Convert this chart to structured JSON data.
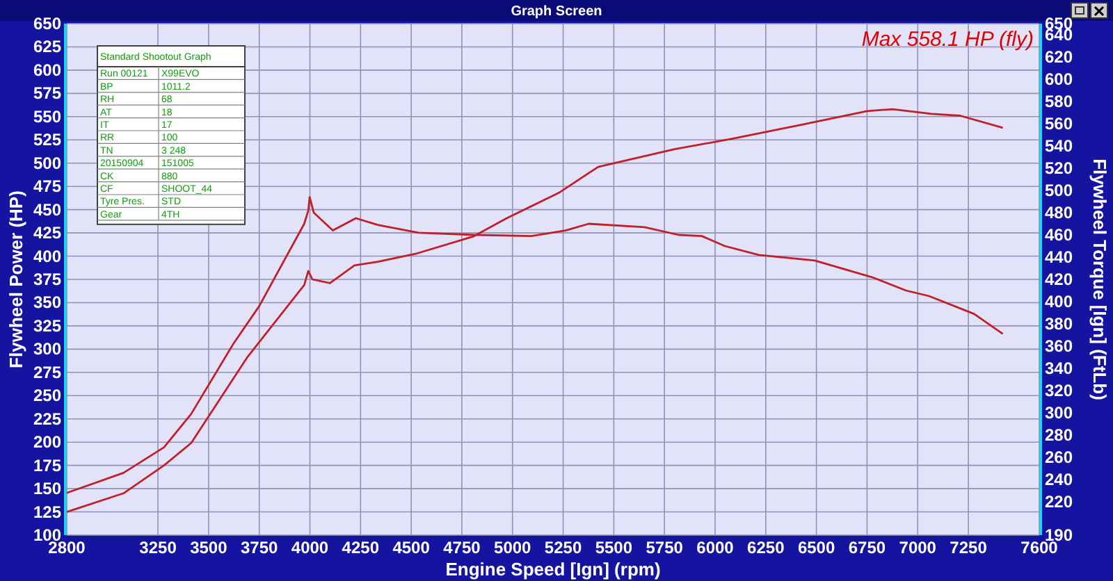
{
  "chart_data": [
    {
      "type": "line",
      "title": "Graph Screen",
      "xlabel": "Engine Speed [Ign] (rpm)",
      "ylabel": "Flywheel Power (HP)",
      "y2label": "Flywheel Torque [Ign] (FtLb)",
      "annotations": [
        "Max 558.1 HP (fly)"
      ],
      "xlim": [
        2800,
        7600
      ],
      "xticks": [
        2800,
        3250,
        3500,
        3750,
        4000,
        4250,
        4500,
        4750,
        5000,
        5250,
        5500,
        5750,
        6000,
        6250,
        6500,
        6750,
        7000,
        7250,
        7600
      ],
      "ylim": [
        100,
        650
      ],
      "yticks": [
        100,
        125,
        150,
        175,
        200,
        225,
        250,
        275,
        300,
        325,
        350,
        375,
        400,
        425,
        450,
        475,
        500,
        525,
        550,
        575,
        600,
        625,
        650
      ],
      "y2lim": [
        190,
        650
      ],
      "y2ticks": [
        190,
        220,
        240,
        260,
        280,
        300,
        320,
        340,
        360,
        380,
        400,
        420,
        440,
        460,
        480,
        500,
        520,
        540,
        560,
        580,
        600,
        620,
        640,
        650
      ],
      "grid": true,
      "marker": "none",
      "line_style": "solid",
      "series": [
        {
          "color": "#c0202a",
          "x": [
            2800,
            3080,
            3280,
            3414,
            3690,
            3972,
            3992,
            4012,
            4099,
            4220,
            4335,
            4530,
            4805,
            4973,
            5228,
            5423,
            5800,
            6080,
            6420,
            6750,
            6875,
            7070,
            7210,
            7420
          ],
          "values": [
            125,
            145,
            175,
            199,
            291,
            369,
            384,
            375,
            371,
            390,
            394,
            403,
            421,
            441,
            468,
            496,
            515,
            526,
            541,
            556,
            558,
            553,
            551,
            538
          ]
        },
        {
          "color": "#c0202a",
          "axis": "y2",
          "x": [
            2800,
            3080,
            3280,
            3414,
            3622,
            3750,
            3972,
            3992,
            3999,
            4019,
            4113,
            4227,
            4335,
            4536,
            4812,
            5094,
            5262,
            5376,
            5652,
            5820,
            5934,
            6048,
            6216,
            6492,
            6774,
            6942,
            7056,
            7278,
            7420
          ],
          "values": [
            228,
            246,
            269,
            299,
            362,
            396,
            470,
            482,
            494,
            480,
            464,
            475,
            469,
            462,
            460,
            459,
            464,
            470,
            467,
            460,
            459,
            450,
            442,
            437,
            422,
            410,
            405,
            389,
            371
          ]
        }
      ]
    },
    {
      "type": "other",
      "title": "Standard Shootout Graph",
      "categories": [
        "Run 00121",
        "BP",
        "RH",
        "AT",
        "IT",
        "RR",
        "TN",
        "20150904",
        "CK",
        "CF",
        "Tyre Pres.",
        "Gear"
      ],
      "value_labels": [
        "X99EVO",
        "1011.2",
        "68",
        "18",
        "17",
        "100",
        "3 248",
        "151005",
        "880",
        "SHOOT_44",
        "STD",
        "4TH"
      ]
    }
  ]
}
